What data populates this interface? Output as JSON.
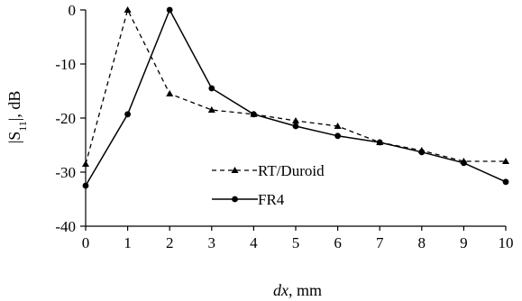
{
  "chart_data": {
    "type": "line",
    "title": "",
    "xlabel": {
      "italic": "dx",
      "rest": ", mm"
    },
    "ylabel": {
      "pre": "|S",
      "sub": "11",
      "post": "|, dB"
    },
    "x": [
      0,
      1,
      2,
      3,
      4,
      5,
      6,
      7,
      8,
      9,
      10
    ],
    "xlim": [
      0,
      10
    ],
    "ylim": [
      -40,
      0
    ],
    "xticks": [
      0,
      1,
      2,
      3,
      4,
      5,
      6,
      7,
      8,
      9,
      10
    ],
    "yticks": [
      0,
      -10,
      -20,
      -30,
      -40
    ],
    "grid": false,
    "legend_position": "lower-left-center",
    "series": [
      {
        "name": "RT/Duroid",
        "style": "dashed",
        "marker": "triangle",
        "color": "#000000",
        "values": [
          -28.5,
          0,
          -15.5,
          -18.5,
          -19.3,
          -20.5,
          -21.5,
          -24.5,
          -26.0,
          -28.0,
          -28.0
        ]
      },
      {
        "name": "FR4",
        "style": "solid",
        "marker": "circle",
        "color": "#000000",
        "values": [
          -32.5,
          -19.3,
          0,
          -14.5,
          -19.3,
          -21.5,
          -23.3,
          -24.5,
          -26.3,
          -28.3,
          -31.8
        ]
      }
    ]
  }
}
